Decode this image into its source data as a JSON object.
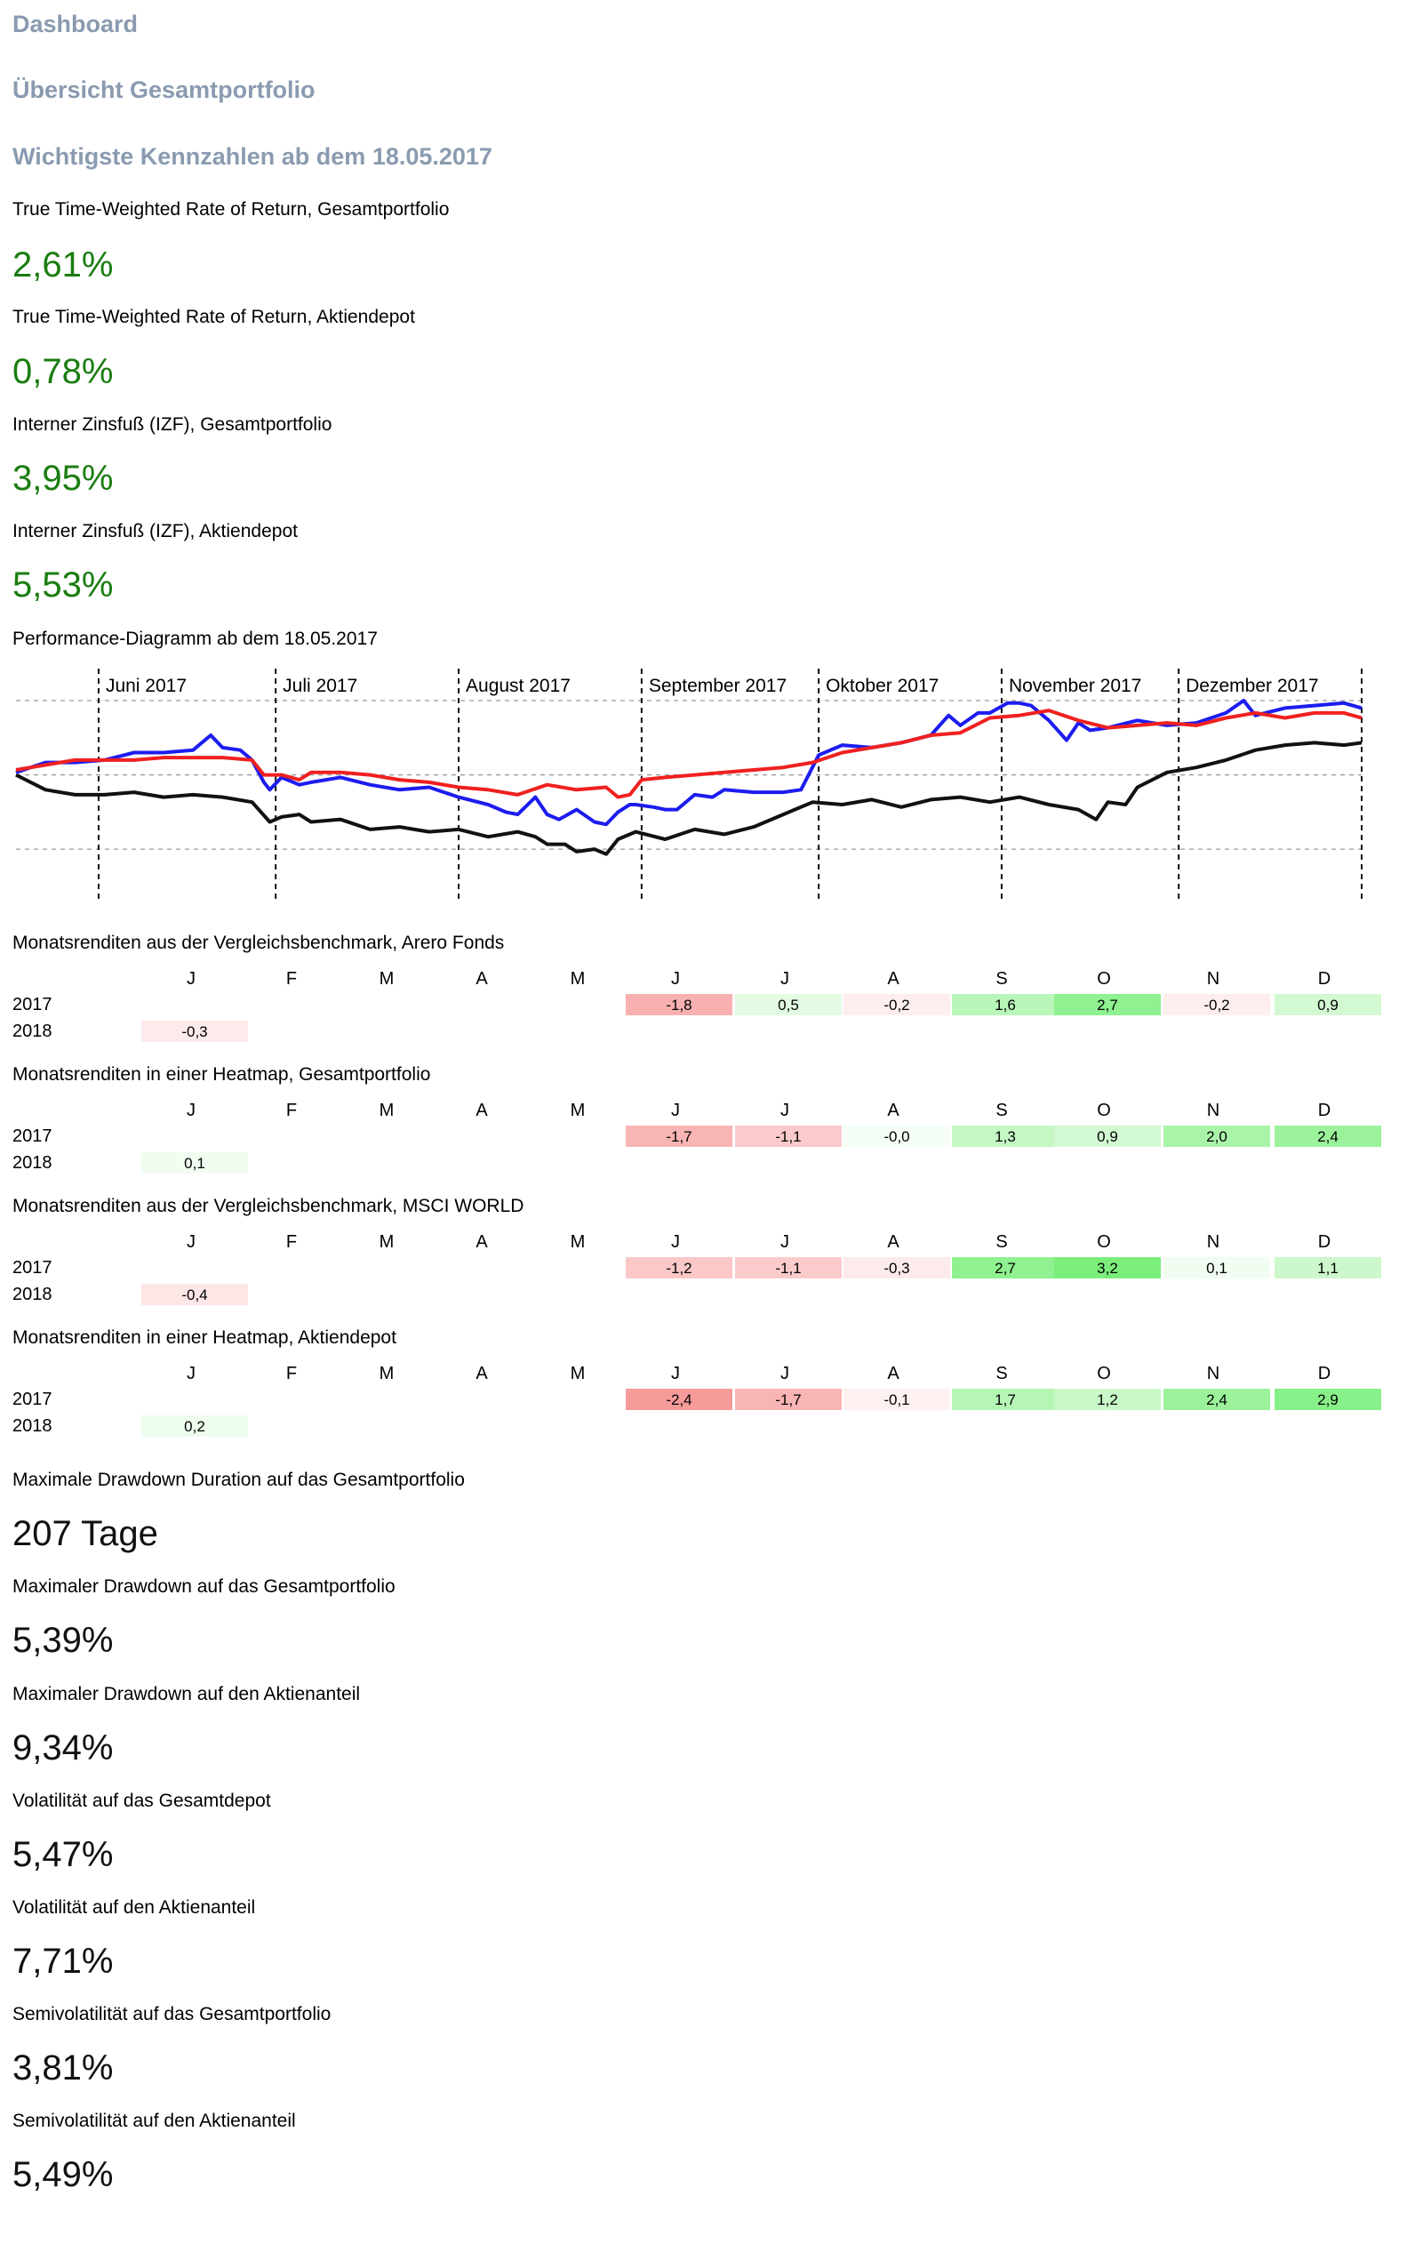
{
  "header": {
    "dashboard": "Dashboard",
    "overview": "Übersicht Gesamtportfolio",
    "key_figures": "Wichtigste Kennzahlen ab dem 18.05.2017"
  },
  "metrics_top": [
    {
      "label": "True Time-Weighted Rate of Return, Gesamtportfolio",
      "value": "2,61%"
    },
    {
      "label": "True Time-Weighted Rate of Return, Aktiendepot",
      "value": "0,78%"
    },
    {
      "label": "Interner Zinsfuß (IZF), Gesamtportfolio",
      "value": "3,95%"
    },
    {
      "label": "Interner Zinsfuß (IZF), Aktiendepot",
      "value": "5,53%"
    }
  ],
  "chart_title": "Performance-Diagramm ab dem 18.05.2017",
  "chart_data": {
    "type": "line",
    "title": "Performance-Diagramm ab dem 18.05.2017",
    "x_range": [
      0,
      228
    ],
    "ylim": [
      -4,
      3
    ],
    "grid": "dashed horizontal at -3, 0, 3; dashed vertical at month starts",
    "months": [
      {
        "label": "Juni 2017",
        "day": 14
      },
      {
        "label": "Juli 2017",
        "day": 44
      },
      {
        "label": "August 2017",
        "day": 75
      },
      {
        "label": "September 2017",
        "day": 106
      },
      {
        "label": "Oktober 2017",
        "day": 136
      },
      {
        "label": "November 2017",
        "day": 167
      },
      {
        "label": "Dezember 2017",
        "day": 197
      },
      {
        "label": "",
        "day": 228
      }
    ],
    "series": [
      {
        "name": "blue",
        "color": "#1c1cf0",
        "x": [
          0,
          5,
          10,
          15,
          20,
          25,
          30,
          33,
          35,
          38,
          40,
          42,
          43,
          45,
          48,
          50,
          55,
          60,
          65,
          70,
          75,
          80,
          83,
          85,
          88,
          90,
          92,
          95,
          98,
          100,
          102,
          104,
          105,
          108,
          110,
          112,
          115,
          118,
          120,
          125,
          130,
          133,
          136,
          140,
          145,
          150,
          155,
          158,
          160,
          163,
          165,
          168,
          170,
          172,
          175,
          178,
          180,
          182,
          185,
          190,
          195,
          200,
          205,
          208,
          210,
          215,
          220,
          225,
          228
        ],
        "y": [
          0.1,
          0.5,
          0.5,
          0.6,
          0.9,
          0.9,
          1.0,
          1.6,
          1.1,
          1.0,
          0.6,
          -0.3,
          -0.6,
          -0.1,
          -0.4,
          -0.3,
          -0.1,
          -0.4,
          -0.6,
          -0.5,
          -0.9,
          -1.2,
          -1.5,
          -1.6,
          -0.9,
          -1.6,
          -1.8,
          -1.4,
          -1.9,
          -2.0,
          -1.5,
          -1.2,
          -1.2,
          -1.3,
          -1.4,
          -1.4,
          -0.8,
          -0.9,
          -0.6,
          -0.7,
          -0.7,
          -0.6,
          0.8,
          1.2,
          1.1,
          1.3,
          1.6,
          2.4,
          2.0,
          2.5,
          2.5,
          2.9,
          2.9,
          2.8,
          2.2,
          1.4,
          2.1,
          1.8,
          1.9,
          2.2,
          2.0,
          2.1,
          2.5,
          3.0,
          2.4,
          2.7,
          2.8,
          2.9,
          2.7
        ]
      },
      {
        "name": "red",
        "color": "#f02020",
        "x": [
          0,
          5,
          10,
          15,
          20,
          25,
          30,
          35,
          40,
          42,
          45,
          48,
          50,
          55,
          60,
          65,
          70,
          75,
          80,
          85,
          90,
          95,
          100,
          102,
          104,
          106,
          110,
          115,
          120,
          125,
          130,
          135,
          140,
          145,
          150,
          155,
          160,
          165,
          170,
          175,
          180,
          185,
          190,
          195,
          200,
          205,
          210,
          215,
          220,
          225,
          228
        ],
        "y": [
          0.2,
          0.4,
          0.6,
          0.6,
          0.6,
          0.7,
          0.7,
          0.7,
          0.6,
          0.0,
          0.0,
          -0.2,
          0.1,
          0.1,
          0.0,
          -0.2,
          -0.3,
          -0.5,
          -0.6,
          -0.8,
          -0.4,
          -0.6,
          -0.5,
          -0.9,
          -0.8,
          -0.2,
          -0.1,
          0.0,
          0.1,
          0.2,
          0.3,
          0.5,
          0.9,
          1.1,
          1.3,
          1.6,
          1.7,
          2.3,
          2.4,
          2.6,
          2.2,
          1.9,
          2.0,
          2.1,
          2.0,
          2.3,
          2.5,
          2.3,
          2.5,
          2.5,
          2.3
        ]
      },
      {
        "name": "black",
        "color": "#111111",
        "x": [
          0,
          5,
          10,
          15,
          20,
          25,
          30,
          35,
          40,
          43,
          45,
          48,
          50,
          55,
          60,
          65,
          70,
          75,
          80,
          85,
          88,
          90,
          93,
          95,
          98,
          100,
          102,
          105,
          110,
          115,
          120,
          125,
          130,
          135,
          140,
          145,
          150,
          155,
          160,
          165,
          170,
          175,
          180,
          183,
          185,
          188,
          190,
          195,
          200,
          205,
          210,
          215,
          220,
          225,
          228
        ],
        "y": [
          0.0,
          -0.6,
          -0.8,
          -0.8,
          -0.7,
          -0.9,
          -0.8,
          -0.9,
          -1.1,
          -1.9,
          -1.7,
          -1.6,
          -1.9,
          -1.8,
          -2.2,
          -2.1,
          -2.3,
          -2.2,
          -2.5,
          -2.3,
          -2.5,
          -2.8,
          -2.8,
          -3.1,
          -3.0,
          -3.2,
          -2.6,
          -2.3,
          -2.6,
          -2.2,
          -2.4,
          -2.1,
          -1.6,
          -1.1,
          -1.2,
          -1.0,
          -1.3,
          -1.0,
          -0.9,
          -1.1,
          -0.9,
          -1.2,
          -1.4,
          -1.8,
          -1.1,
          -1.2,
          -0.5,
          0.1,
          0.3,
          0.6,
          1.0,
          1.2,
          1.3,
          1.2,
          1.3
        ]
      }
    ]
  },
  "heatmaps": [
    {
      "title": "Monatsrenditen aus der Vergleichsbenchmark, Arero Fonds",
      "months": [
        "J",
        "F",
        "M",
        "A",
        "M",
        "J",
        "J",
        "A",
        "S",
        "O",
        "N",
        "D"
      ],
      "rows": [
        {
          "year": "2017",
          "values": [
            "",
            "",
            "",
            "",
            "",
            "-1,8",
            "0,5",
            "-0,2",
            "1,6",
            "2,7",
            "-0,2",
            "0,9"
          ]
        },
        {
          "year": "2018",
          "values": [
            "-0,3",
            "",
            "",
            "",
            "",
            "",
            "",
            "",
            "",
            "",
            "",
            ""
          ]
        }
      ]
    },
    {
      "title": "Monatsrenditen in einer Heatmap, Gesamtportfolio",
      "months": [
        "J",
        "F",
        "M",
        "A",
        "M",
        "J",
        "J",
        "A",
        "S",
        "O",
        "N",
        "D"
      ],
      "rows": [
        {
          "year": "2017",
          "values": [
            "",
            "",
            "",
            "",
            "",
            "-1,7",
            "-1,1",
            "-0,0",
            "1,3",
            "0,9",
            "2,0",
            "2,4"
          ]
        },
        {
          "year": "2018",
          "values": [
            "0,1",
            "",
            "",
            "",
            "",
            "",
            "",
            "",
            "",
            "",
            "",
            ""
          ]
        }
      ]
    },
    {
      "title": "Monatsrenditen aus der Vergleichsbenchmark, MSCI WORLD",
      "months": [
        "J",
        "F",
        "M",
        "A",
        "M",
        "J",
        "J",
        "A",
        "S",
        "O",
        "N",
        "D"
      ],
      "rows": [
        {
          "year": "2017",
          "values": [
            "",
            "",
            "",
            "",
            "",
            "-1,2",
            "-1,1",
            "-0,3",
            "2,7",
            "3,2",
            "0,1",
            "1,1"
          ]
        },
        {
          "year": "2018",
          "values": [
            "-0,4",
            "",
            "",
            "",
            "",
            "",
            "",
            "",
            "",
            "",
            "",
            ""
          ]
        }
      ]
    },
    {
      "title": "Monatsrenditen in einer Heatmap, Aktiendepot",
      "months": [
        "J",
        "F",
        "M",
        "A",
        "M",
        "J",
        "J",
        "A",
        "S",
        "O",
        "N",
        "D"
      ],
      "rows": [
        {
          "year": "2017",
          "values": [
            "",
            "",
            "",
            "",
            "",
            "-2,4",
            "-1,7",
            "-0,1",
            "1,7",
            "1,2",
            "2,4",
            "2,9"
          ]
        },
        {
          "year": "2018",
          "values": [
            "0,2",
            "",
            "",
            "",
            "",
            "",
            "",
            "",
            "",
            "",
            "",
            ""
          ]
        }
      ]
    }
  ],
  "metrics_bottom": [
    {
      "label": "Maximale Drawdown Duration auf das Gesamtportfolio",
      "value": "207 Tage"
    },
    {
      "label": "Maximaler Drawdown auf das Gesamtportfolio",
      "value": "5,39%"
    },
    {
      "label": "Maximaler Drawdown auf den Aktienanteil",
      "value": "9,34%"
    },
    {
      "label": "Volatilität auf das Gesamtdepot",
      "value": "5,47%"
    },
    {
      "label": "Volatilität auf den Aktienanteil",
      "value": "7,71%"
    },
    {
      "label": "Semivolatilität auf das Gesamtportfolio",
      "value": "3,81%"
    },
    {
      "label": "Semivolatilität auf den Aktienanteil",
      "value": "5,49%"
    }
  ],
  "colors": {
    "heading": "#8a9bb0",
    "positive_value": "#1a7d10",
    "heat_negative": "#f03a3a",
    "heat_positive": "#3ce63c"
  }
}
